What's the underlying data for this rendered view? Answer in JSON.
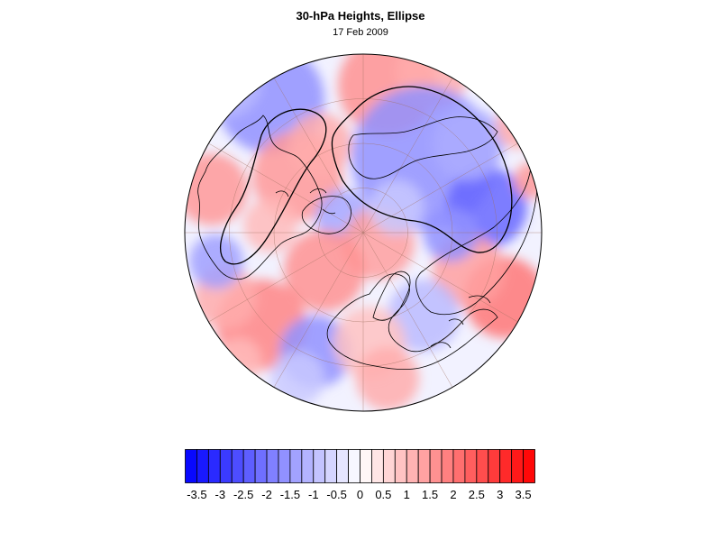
{
  "title": "30-hPa Heights, Ellipse",
  "subtitle": "17 Feb 2009",
  "map": {
    "projection": "north-polar-stereographic",
    "field": "standardized 30-hPa height anomaly",
    "overlay": "ellipse contour",
    "colormap": {
      "min_color": "#0000ff",
      "mid_color": "#ffffff",
      "max_color": "#ff0000",
      "levels": [
        -3.75,
        -3.5,
        -3.25,
        -3,
        -2.75,
        -2.5,
        -2.25,
        -2,
        -1.75,
        -1.5,
        -1.25,
        -1,
        -0.75,
        -0.5,
        -0.25,
        0,
        0.25,
        0.5,
        0.75,
        1,
        1.25,
        1.5,
        1.75,
        2,
        2.25,
        2.5,
        2.75,
        3,
        3.25,
        3.5,
        3.75
      ]
    }
  },
  "colorbar": {
    "tick_labels": [
      "-3.5",
      "-3",
      "-2.5",
      "-2",
      "-1.5",
      "-1",
      "-0.5",
      "0",
      "0.5",
      "1",
      "1.5",
      "2",
      "2.5",
      "3",
      "3.5"
    ],
    "tick_values": [
      -3.5,
      -3,
      -2.5,
      -2,
      -1.5,
      -1,
      -0.5,
      0,
      0.5,
      1,
      1.5,
      2,
      2.5,
      3,
      3.5
    ]
  }
}
